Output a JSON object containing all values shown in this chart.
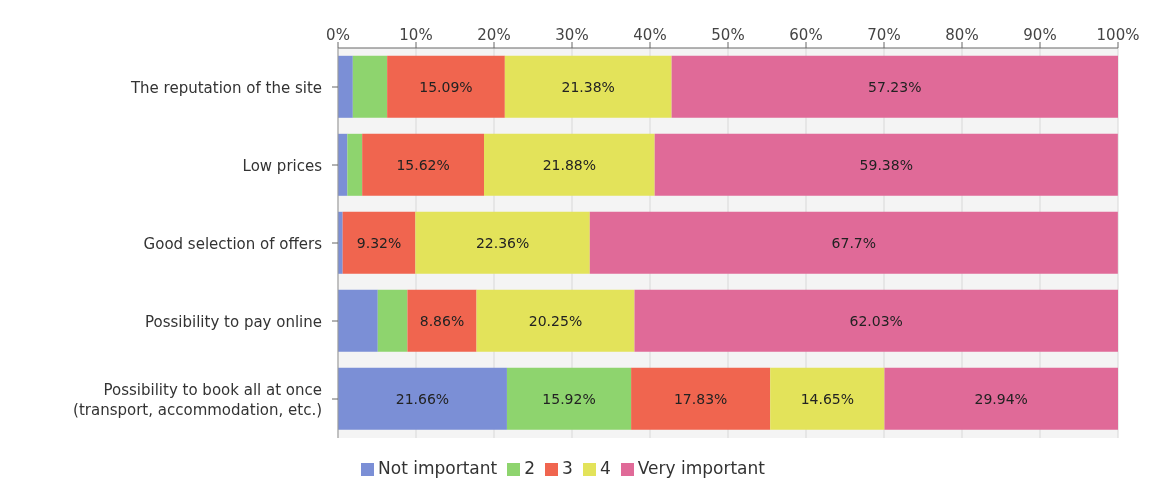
{
  "chart_data": {
    "type": "bar",
    "orientation": "horizontal",
    "stacked": true,
    "categories": [
      "The reputation of the site",
      "Low prices",
      "Good selection of offers",
      "Possibility to pay online",
      "Possibility to book all at once\n(transport, accommodation, etc.)"
    ],
    "series": [
      {
        "name": "Not important",
        "color": "#7b8fd6",
        "values": [
          1.9,
          1.2,
          0.6,
          5.1,
          21.66
        ],
        "value_labels": [
          null,
          null,
          null,
          null,
          "21.66%"
        ]
      },
      {
        "name": "2",
        "color": "#8ed46e",
        "values": [
          4.4,
          1.9,
          0,
          3.8,
          15.92
        ],
        "value_labels": [
          null,
          null,
          null,
          null,
          "15.92%"
        ]
      },
      {
        "name": "3",
        "color": "#f0654f",
        "values": [
          15.09,
          15.62,
          9.32,
          8.86,
          17.83
        ],
        "value_labels": [
          "15.09%",
          "15.62%",
          "9.32%",
          "8.86%",
          "17.83%"
        ]
      },
      {
        "name": "4",
        "color": "#e3e35a",
        "values": [
          21.38,
          21.88,
          22.36,
          20.25,
          14.65
        ],
        "value_labels": [
          "21.38%",
          "21.88%",
          "22.36%",
          "20.25%",
          "14.65%"
        ]
      },
      {
        "name": "Very important",
        "color": "#e06a98",
        "values": [
          57.23,
          59.38,
          67.7,
          62.03,
          29.94
        ],
        "value_labels": [
          "57.23%",
          "59.38%",
          "67.7%",
          "62.03%",
          "29.94%"
        ]
      }
    ],
    "xlim": [
      0,
      100
    ],
    "xticks": [
      {
        "value": 0,
        "label": "0%"
      },
      {
        "value": 10,
        "label": "10%"
      },
      {
        "value": 20,
        "label": "20%"
      },
      {
        "value": 30,
        "label": "30%"
      },
      {
        "value": 40,
        "label": "40%"
      },
      {
        "value": 50,
        "label": "50%"
      },
      {
        "value": 60,
        "label": "60%"
      },
      {
        "value": 70,
        "label": "70%"
      },
      {
        "value": 80,
        "label": "80%"
      },
      {
        "value": 90,
        "label": "90%"
      },
      {
        "value": 100,
        "label": "100%"
      }
    ],
    "grid": "x",
    "legend": "bottom"
  }
}
